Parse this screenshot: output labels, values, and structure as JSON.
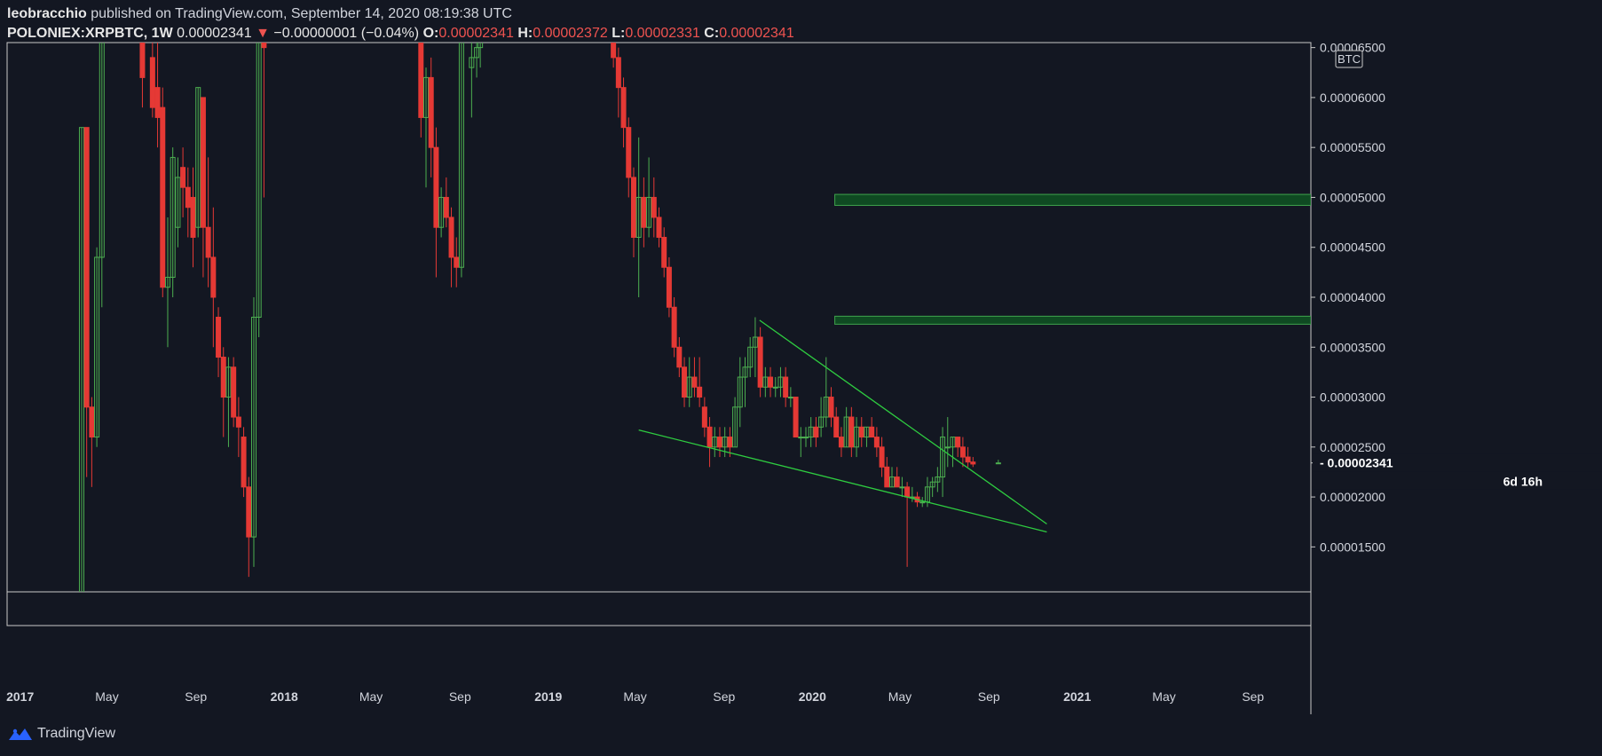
{
  "header": {
    "author": "leobracchio",
    "published_text": " published on TradingView.com, September 14, 2020 08:19:38 UTC",
    "symbol": "POLONIEX:XRPBTC, 1W",
    "last": "0.00002341",
    "arrow": "▼",
    "change": "−0.00000001 (−0.04%)",
    "o_label": "O:",
    "o_val": "0.00002341",
    "h_label": "H:",
    "h_val": "0.00002372",
    "l_label": "L:",
    "l_val": "0.00002331",
    "c_label": "C:",
    "c_val": "0.00002341"
  },
  "footer": {
    "brand": "TradingView"
  },
  "colors": {
    "background": "#131722",
    "up": "#4caf50",
    "down": "#e53935",
    "trendline": "#2ecc40",
    "zone_fill": "#0f4a22",
    "zone_border": "#3fa34d",
    "axis_text": "#d1d4dc",
    "last_price_bg": "#e6e6e6"
  },
  "chart_data": {
    "type": "candlestick",
    "timeframe": "1W",
    "currency_badge": "BTC",
    "last_price_label": "0.00002341",
    "countdown_label": "6d 16h",
    "y_ticks": [
      "0.00006500",
      "0.00006000",
      "0.00005500",
      "0.00005000",
      "0.00004500",
      "0.00004000",
      "0.00003500",
      "0.00003000",
      "0.00002500",
      "0.00002000",
      "0.00001500"
    ],
    "y_tick_values": [
      6.5e-05,
      6e-05,
      5.5e-05,
      5e-05,
      4.5e-05,
      4e-05,
      3.5e-05,
      3e-05,
      2.5e-05,
      2e-05,
      1.5e-05
    ],
    "ylim": [
      1.05e-05,
      6.55e-05
    ],
    "x_ticks": [
      {
        "label": "2017",
        "date": "2017-01-01",
        "bold": true
      },
      {
        "label": "May",
        "date": "2017-05-01"
      },
      {
        "label": "Sep",
        "date": "2017-09-01"
      },
      {
        "label": "2018",
        "date": "2018-01-01",
        "bold": true
      },
      {
        "label": "May",
        "date": "2018-05-01"
      },
      {
        "label": "Sep",
        "date": "2018-09-01"
      },
      {
        "label": "2019",
        "date": "2019-01-01",
        "bold": true
      },
      {
        "label": "May",
        "date": "2019-05-01"
      },
      {
        "label": "Sep",
        "date": "2019-09-01"
      },
      {
        "label": "2020",
        "date": "2020-01-01",
        "bold": true
      },
      {
        "label": "May",
        "date": "2020-05-01"
      },
      {
        "label": "Sep",
        "date": "2020-09-01"
      },
      {
        "label": "2021",
        "date": "2021-01-01",
        "bold": true
      },
      {
        "label": "May",
        "date": "2021-05-01"
      },
      {
        "label": "Sep",
        "date": "2021-09-01"
      }
    ],
    "xlim": [
      "2016-12-14",
      "2021-11-20"
    ],
    "candles": [
      [
        "2017-03-27",
        1e-05,
        5.7e-05,
        1e-05,
        5.7e-05
      ],
      [
        "2017-04-03",
        5.7e-05,
        5.7e-05,
        2.2e-05,
        2.9e-05
      ],
      [
        "2017-04-10",
        2.9e-05,
        3e-05,
        2.1e-05,
        2.6e-05
      ],
      [
        "2017-04-17",
        2.6e-05,
        4.5e-05,
        2.5e-05,
        4.4e-05
      ],
      [
        "2017-04-24",
        4.4e-05,
        6.6e-05,
        3.9e-05,
        6.6e-05
      ],
      [
        "2017-06-19",
        6.6e-05,
        6.6e-05,
        5.9e-05,
        6.2e-05
      ],
      [
        "2017-07-03",
        6.4e-05,
        6.6e-05,
        5.8e-05,
        5.9e-05
      ],
      [
        "2017-07-10",
        6.1e-05,
        6.6e-05,
        5.5e-05,
        5.8e-05
      ],
      [
        "2017-07-17",
        5.9e-05,
        6.1e-05,
        4e-05,
        4.1e-05
      ],
      [
        "2017-07-24",
        4.1e-05,
        4.8e-05,
        3.5e-05,
        4.2e-05
      ],
      [
        "2017-07-31",
        4.2e-05,
        5.5e-05,
        4e-05,
        5.4e-05
      ],
      [
        "2017-08-07",
        4.7e-05,
        5.4e-05,
        4.5e-05,
        5.2e-05
      ],
      [
        "2017-08-14",
        5.3e-05,
        5.5e-05,
        4.8e-05,
        5.1e-05
      ],
      [
        "2017-08-21",
        5.1e-05,
        5.3e-05,
        4.6e-05,
        4.9e-05
      ],
      [
        "2017-08-28",
        5e-05,
        5.3e-05,
        4.3e-05,
        4.6e-05
      ],
      [
        "2017-09-04",
        4.7e-05,
        6.1e-05,
        4.6e-05,
        6.1e-05
      ],
      [
        "2017-09-11",
        6e-05,
        6e-05,
        4.2e-05,
        4.7e-05
      ],
      [
        "2017-09-18",
        4.7e-05,
        5.4e-05,
        4.1e-05,
        4.4e-05
      ],
      [
        "2017-09-25",
        4.4e-05,
        4.9e-05,
        3.5e-05,
        4e-05
      ],
      [
        "2017-10-02",
        3.8e-05,
        3.9e-05,
        3.2e-05,
        3.4e-05
      ],
      [
        "2017-10-09",
        3.4e-05,
        3.5e-05,
        2.6e-05,
        3e-05
      ],
      [
        "2017-10-16",
        3e-05,
        3.4e-05,
        2.5e-05,
        3.3e-05
      ],
      [
        "2017-10-23",
        3.3e-05,
        3.4e-05,
        2.7e-05,
        2.8e-05
      ],
      [
        "2017-10-30",
        2.8e-05,
        3e-05,
        2.4e-05,
        2.7e-05
      ],
      [
        "2017-11-06",
        2.6e-05,
        2.7e-05,
        2e-05,
        2.1e-05
      ],
      [
        "2017-11-13",
        2.1e-05,
        2.2e-05,
        1.2e-05,
        1.6e-05
      ],
      [
        "2017-11-20",
        1.6e-05,
        4e-05,
        1.3e-05,
        3.8e-05
      ],
      [
        "2017-11-27",
        3.8e-05,
        6.6e-05,
        3.6e-05,
        6.6e-05
      ],
      [
        "2017-12-04",
        6.6e-05,
        6.6e-05,
        5e-05,
        6.5e-05
      ],
      [
        "2018-07-09",
        6.6e-05,
        6.6e-05,
        5.6e-05,
        5.8e-05
      ],
      [
        "2018-07-16",
        5.8e-05,
        6.3e-05,
        5.1e-05,
        6.2e-05
      ],
      [
        "2018-07-23",
        6.2e-05,
        6.4e-05,
        5.2e-05,
        5.5e-05
      ],
      [
        "2018-07-30",
        5.5e-05,
        5.7e-05,
        4.2e-05,
        4.7e-05
      ],
      [
        "2018-08-06",
        4.7e-05,
        5.1e-05,
        4.6e-05,
        5e-05
      ],
      [
        "2018-08-13",
        5e-05,
        5.2e-05,
        4.7e-05,
        4.8e-05
      ],
      [
        "2018-08-20",
        4.8e-05,
        4.9e-05,
        4.1e-05,
        4.4e-05
      ],
      [
        "2018-08-27",
        4.4e-05,
        4.6e-05,
        4.1e-05,
        4.3e-05
      ],
      [
        "2018-09-03",
        4.3e-05,
        6.6e-05,
        4.2e-05,
        6.6e-05
      ],
      [
        "2018-09-17",
        6.3e-05,
        6.6e-05,
        5.8e-05,
        6.4e-05
      ],
      [
        "2018-09-24",
        6.4e-05,
        6.6e-05,
        6.2e-05,
        6.5e-05
      ],
      [
        "2018-09-29",
        6.5e-05,
        6.6e-05,
        6.3e-05,
        6.6e-05
      ],
      [
        "2019-04-01",
        6.6e-05,
        6.6e-05,
        6.3e-05,
        6.4e-05
      ],
      [
        "2019-04-08",
        6.4e-05,
        6.5e-05,
        5.8e-05,
        6.1e-05
      ],
      [
        "2019-04-15",
        6.1e-05,
        6.2e-05,
        5.5e-05,
        5.7e-05
      ],
      [
        "2019-04-22",
        5.7e-05,
        5.8e-05,
        5e-05,
        5.2e-05
      ],
      [
        "2019-04-29",
        5.2e-05,
        5.3e-05,
        4.4e-05,
        4.6e-05
      ],
      [
        "2019-05-06",
        4.6e-05,
        5.6e-05,
        4e-05,
        5e-05
      ],
      [
        "2019-05-13",
        5e-05,
        5.2e-05,
        4.5e-05,
        4.7e-05
      ],
      [
        "2019-05-20",
        4.7e-05,
        5.4e-05,
        4.6e-05,
        5e-05
      ],
      [
        "2019-05-27",
        5e-05,
        5.2e-05,
        4.6e-05,
        4.8e-05
      ],
      [
        "2019-06-03",
        4.8e-05,
        4.9e-05,
        4.5e-05,
        4.6e-05
      ],
      [
        "2019-06-10",
        4.6e-05,
        4.7e-05,
        4.2e-05,
        4.3e-05
      ],
      [
        "2019-06-17",
        4.3e-05,
        4.4e-05,
        3.8e-05,
        3.9e-05
      ],
      [
        "2019-06-24",
        3.9e-05,
        4e-05,
        3.4e-05,
        3.5e-05
      ],
      [
        "2019-07-01",
        3.5e-05,
        3.6e-05,
        3.2e-05,
        3.3e-05
      ],
      [
        "2019-07-08",
        3.3e-05,
        3.4e-05,
        2.9e-05,
        3e-05
      ],
      [
        "2019-07-15",
        3e-05,
        3.4e-05,
        2.9e-05,
        3.2e-05
      ],
      [
        "2019-07-22",
        3.2e-05,
        3.4e-05,
        3e-05,
        3.1e-05
      ],
      [
        "2019-07-29",
        3.1e-05,
        3.4e-05,
        2.9e-05,
        3e-05
      ],
      [
        "2019-08-05",
        2.9e-05,
        3e-05,
        2.6e-05,
        2.7e-05
      ],
      [
        "2019-08-12",
        2.7e-05,
        2.8e-05,
        2.3e-05,
        2.5e-05
      ],
      [
        "2019-08-19",
        2.5e-05,
        2.7e-05,
        2.4e-05,
        2.6e-05
      ],
      [
        "2019-08-26",
        2.6e-05,
        2.7e-05,
        2.4e-05,
        2.5e-05
      ],
      [
        "2019-09-02",
        2.5e-05,
        2.7e-05,
        2.4e-05,
        2.6e-05
      ],
      [
        "2019-09-09",
        2.6e-05,
        2.7e-05,
        2.4e-05,
        2.5e-05
      ],
      [
        "2019-09-16",
        2.5e-05,
        3e-05,
        2.5e-05,
        2.9e-05
      ],
      [
        "2019-09-23",
        2.9e-05,
        3.4e-05,
        2.7e-05,
        3.2e-05
      ],
      [
        "2019-09-30",
        3.2e-05,
        3.4e-05,
        2.9e-05,
        3.3e-05
      ],
      [
        "2019-10-07",
        3.3e-05,
        3.6e-05,
        3.2e-05,
        3.5e-05
      ],
      [
        "2019-10-14",
        3.5e-05,
        3.8e-05,
        3.2e-05,
        3.6e-05
      ],
      [
        "2019-10-21",
        3.6e-05,
        3.7e-05,
        3e-05,
        3.1e-05
      ],
      [
        "2019-10-28",
        3.1e-05,
        3.3e-05,
        3e-05,
        3.2e-05
      ],
      [
        "2019-11-04",
        3.2e-05,
        3.3e-05,
        3e-05,
        3.1e-05
      ],
      [
        "2019-11-11",
        3.1e-05,
        3.2e-05,
        3e-05,
        3.1e-05
      ],
      [
        "2019-11-18",
        3.1e-05,
        3.3e-05,
        3e-05,
        3.2e-05
      ],
      [
        "2019-11-25",
        3.2e-05,
        3.3e-05,
        2.9e-05,
        3e-05
      ],
      [
        "2019-12-02",
        3e-05,
        3.1e-05,
        2.9e-05,
        3e-05
      ],
      [
        "2019-12-09",
        3e-05,
        3e-05,
        2.6e-05,
        2.6e-05
      ],
      [
        "2019-12-16",
        2.6e-05,
        2.7e-05,
        2.4e-05,
        2.6e-05
      ],
      [
        "2019-12-23",
        2.6e-05,
        2.7e-05,
        2.5e-05,
        2.6e-05
      ],
      [
        "2019-12-30",
        2.6e-05,
        2.8e-05,
        2.5e-05,
        2.7e-05
      ],
      [
        "2020-01-06",
        2.7e-05,
        2.8e-05,
        2.5e-05,
        2.6e-05
      ],
      [
        "2020-01-13",
        2.7e-05,
        3e-05,
        2.6e-05,
        2.8e-05
      ],
      [
        "2020-01-20",
        2.8e-05,
        3.4e-05,
        2.7e-05,
        3e-05
      ],
      [
        "2020-01-27",
        3e-05,
        3.1e-05,
        2.7e-05,
        2.8e-05
      ],
      [
        "2020-02-03",
        2.8e-05,
        2.9e-05,
        2.6e-05,
        2.6e-05
      ],
      [
        "2020-02-10",
        2.6e-05,
        2.7e-05,
        2.4e-05,
        2.5e-05
      ],
      [
        "2020-02-17",
        2.5e-05,
        2.9e-05,
        2.5e-05,
        2.8e-05
      ],
      [
        "2020-02-24",
        2.8e-05,
        2.9e-05,
        2.4e-05,
        2.5e-05
      ],
      [
        "2020-03-02",
        2.5e-05,
        2.8e-05,
        2.4e-05,
        2.7e-05
      ],
      [
        "2020-03-09",
        2.7e-05,
        2.8e-05,
        2.5e-05,
        2.6e-05
      ],
      [
        "2020-03-16",
        2.6e-05,
        2.7e-05,
        2.5e-05,
        2.7e-05
      ],
      [
        "2020-03-23",
        2.7e-05,
        2.8e-05,
        2.6e-05,
        2.6e-05
      ],
      [
        "2020-03-30",
        2.6e-05,
        2.7e-05,
        2.4e-05,
        2.5e-05
      ],
      [
        "2020-04-06",
        2.5e-05,
        2.6e-05,
        2.2e-05,
        2.3e-05
      ],
      [
        "2020-04-13",
        2.3e-05,
        2.4e-05,
        2.1e-05,
        2.1e-05
      ],
      [
        "2020-04-20",
        2.1e-05,
        2.3e-05,
        2.1e-05,
        2.2e-05
      ],
      [
        "2020-04-27",
        2.2e-05,
        2.3e-05,
        2.1e-05,
        2.1e-05
      ],
      [
        "2020-05-04",
        2.1e-05,
        2.2e-05,
        2e-05,
        2.1e-05
      ],
      [
        "2020-05-11",
        2.1e-05,
        2.15e-05,
        1.3e-05,
        2e-05
      ],
      [
        "2020-05-18",
        2e-05,
        2.1e-05,
        1.95e-05,
        2e-05
      ],
      [
        "2020-05-25",
        2e-05,
        2.05e-05,
        1.9e-05,
        1.95e-05
      ],
      [
        "2020-06-01",
        1.95e-05,
        2e-05,
        1.9e-05,
        1.95e-05
      ],
      [
        "2020-06-08",
        1.95e-05,
        2.2e-05,
        1.9e-05,
        2.1e-05
      ],
      [
        "2020-06-15",
        2.1e-05,
        2.2e-05,
        2e-05,
        2.15e-05
      ],
      [
        "2020-06-22",
        2.15e-05,
        2.3e-05,
        2.05e-05,
        2.2e-05
      ],
      [
        "2020-06-29",
        2.2e-05,
        2.7e-05,
        2e-05,
        2.6e-05
      ],
      [
        "2020-07-06",
        2.5e-05,
        2.8e-05,
        2.3e-05,
        2.5e-05
      ],
      [
        "2020-07-13",
        2.5e-05,
        2.6e-05,
        2.3e-05,
        2.6e-05
      ],
      [
        "2020-07-20",
        2.6e-05,
        2.6e-05,
        2.4e-05,
        2.5e-05
      ],
      [
        "2020-07-27",
        2.5e-05,
        2.6e-05,
        2.3e-05,
        2.4e-05
      ],
      [
        "2020-08-03",
        2.4e-05,
        2.5e-05,
        2.3e-05,
        2.35e-05
      ],
      [
        "2020-08-10",
        2.35e-05,
        2.4e-05,
        2.3e-05,
        2.33e-05
      ],
      [
        "2020-09-14",
        2.341e-05,
        2.372e-05,
        2.331e-05,
        2.341e-05
      ]
    ],
    "zones": [
      {
        "from": "2020-02-01",
        "y_high": 5.03e-05,
        "y_low": 4.92e-05
      },
      {
        "from": "2020-02-01",
        "y_high": 3.81e-05,
        "y_low": 3.73e-05
      }
    ],
    "trendlines": [
      {
        "from": [
          "2019-05-06",
          2.67e-05
        ],
        "to": [
          "2020-11-20",
          1.65e-05
        ]
      },
      {
        "from": [
          "2019-10-20",
          3.77e-05
        ],
        "to": [
          "2020-11-20",
          1.73e-05
        ]
      }
    ]
  }
}
